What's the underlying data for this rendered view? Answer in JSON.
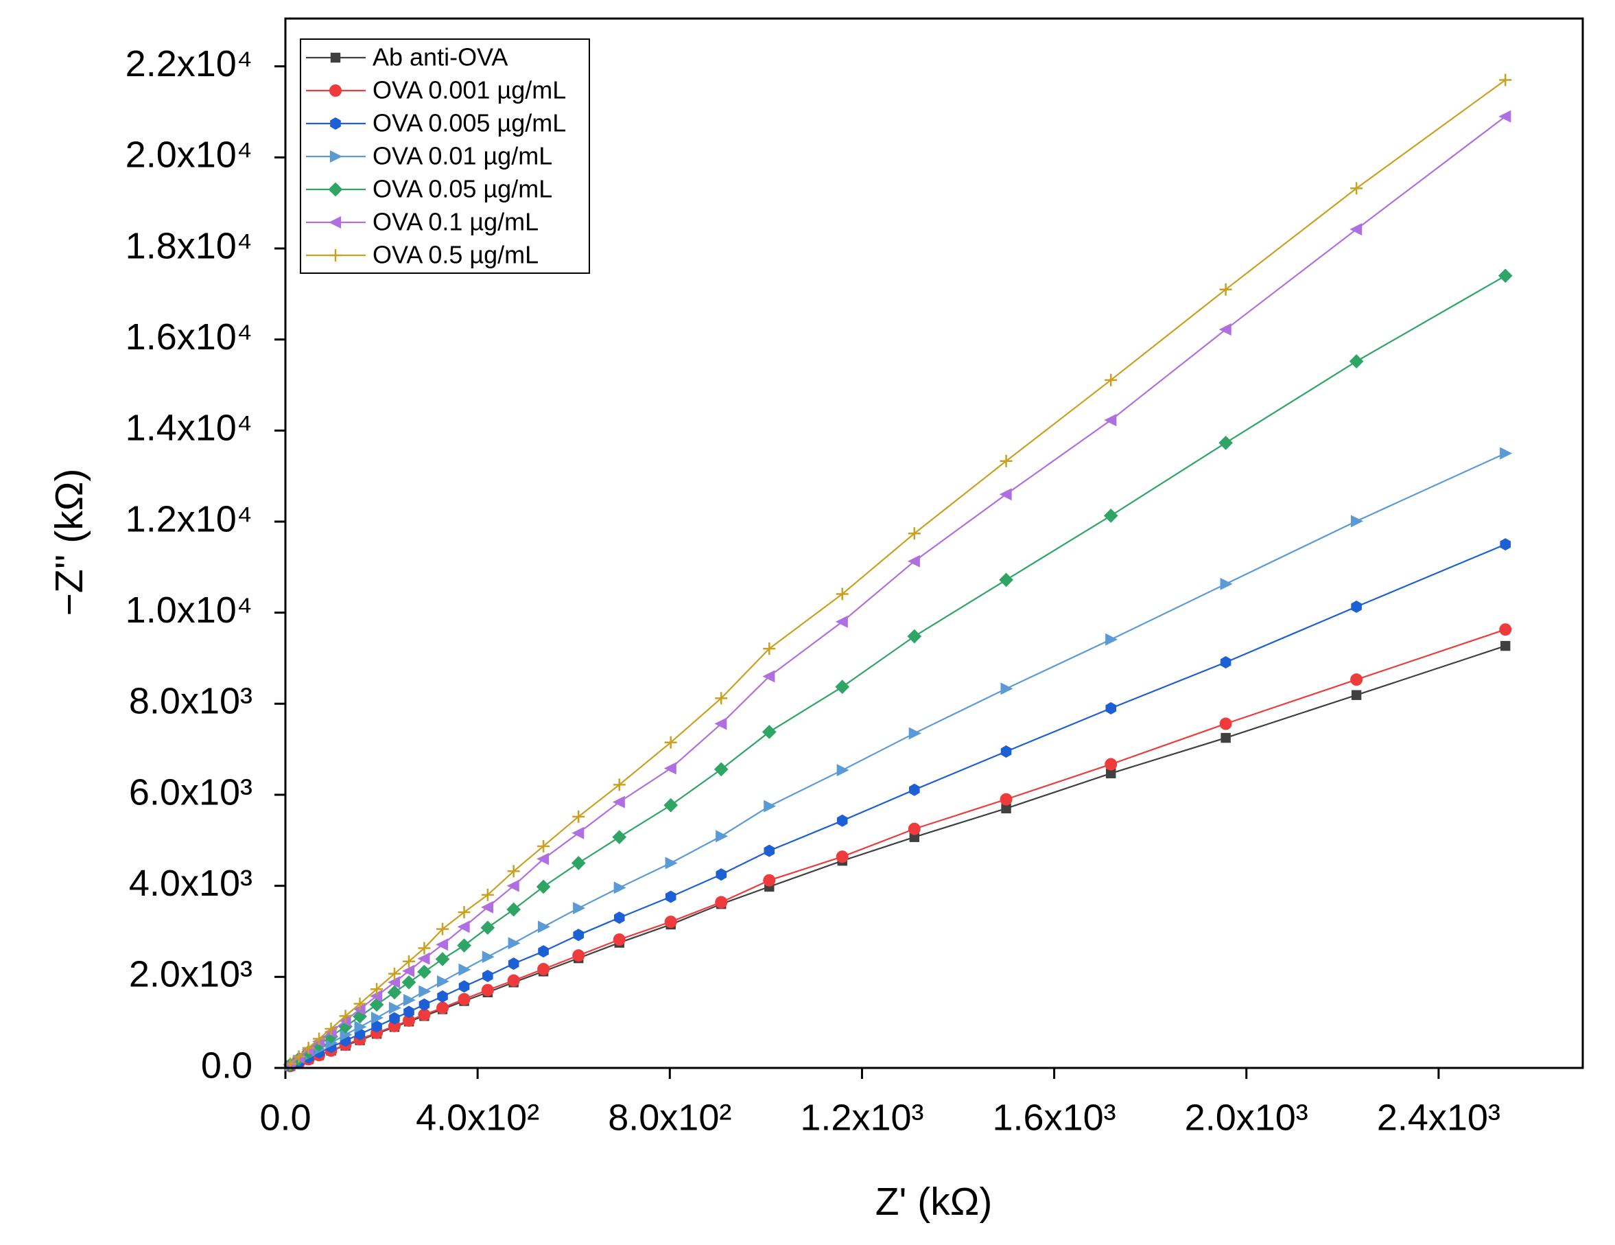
{
  "chart_data": {
    "type": "line",
    "xlabel": "Z' (kΩ)",
    "ylabel": "−Z'' (kΩ)",
    "x": [
      2539,
      2229,
      1957,
      1718,
      1500,
      1309,
      1159,
      1007,
      907,
      802,
      695,
      610,
      537,
      475,
      421,
      372,
      327,
      289,
      257,
      227,
      190,
      155,
      125,
      95,
      70,
      48,
      28,
      10
    ],
    "xlim": [
      0,
      2700
    ],
    "ylim": [
      0,
      23050
    ],
    "xticks": [
      {
        "value": 0,
        "label": "0.0"
      },
      {
        "value": 400,
        "label": "4.0x10²"
      },
      {
        "value": 800,
        "label": "8.0x10²"
      },
      {
        "value": 1200,
        "label": "1.2x10³"
      },
      {
        "value": 1600,
        "label": "1.6x10³"
      },
      {
        "value": 2000,
        "label": "2.0x10³"
      },
      {
        "value": 2400,
        "label": "2.4x10³"
      }
    ],
    "yticks": [
      {
        "value": 0,
        "label": "0.0"
      },
      {
        "value": 2000,
        "label": "2.0x10³"
      },
      {
        "value": 4000,
        "label": "4.0x10³"
      },
      {
        "value": 6000,
        "label": "6.0x10³"
      },
      {
        "value": 8000,
        "label": "8.0x10³"
      },
      {
        "value": 10000,
        "label": "1.0x10⁴"
      },
      {
        "value": 12000,
        "label": "1.2x10⁴"
      },
      {
        "value": 14000,
        "label": "1.4x10⁴"
      },
      {
        "value": 16000,
        "label": "1.6x10⁴"
      },
      {
        "value": 18000,
        "label": "1.8x10⁴"
      },
      {
        "value": 20000,
        "label": "2.0x10⁴"
      },
      {
        "value": 22000,
        "label": "2.2x10⁴"
      }
    ],
    "legend": "upper left",
    "grid": false,
    "series": [
      {
        "name": "Ab anti-OVA",
        "color": "#404040",
        "marker": "square",
        "values": [
          9270,
          8190,
          7250,
          6470,
          5700,
          5070,
          4550,
          3980,
          3600,
          3150,
          2750,
          2410,
          2120,
          1880,
          1660,
          1470,
          1290,
          1140,
          1020,
          900,
          750,
          610,
          490,
          380,
          280,
          190,
          110,
          40
        ]
      },
      {
        "name": "OVA 0.001 µg/mL",
        "color": "#ef3b3b",
        "marker": "circle",
        "values": [
          9630,
          8530,
          7560,
          6670,
          5900,
          5250,
          4640,
          4120,
          3640,
          3210,
          2820,
          2470,
          2170,
          1920,
          1710,
          1510,
          1320,
          1170,
          1040,
          920,
          770,
          630,
          510,
          380,
          280,
          190,
          110,
          40
        ]
      },
      {
        "name": "OVA 0.005 µg/mL",
        "color": "#1d5fd4",
        "marker": "hexagon",
        "values": [
          11500,
          10130,
          8910,
          7900,
          6950,
          6110,
          5430,
          4770,
          4250,
          3760,
          3300,
          2920,
          2560,
          2290,
          2020,
          1790,
          1570,
          1390,
          1230,
          1090,
          910,
          740,
          600,
          460,
          340,
          230,
          130,
          50
        ]
      },
      {
        "name": "OVA  0.01 µg/mL",
        "color": "#5b9bd5",
        "marker": "triangle-right",
        "values": [
          13500,
          12010,
          10630,
          9410,
          8330,
          7350,
          6540,
          5750,
          5090,
          4500,
          3960,
          3510,
          3100,
          2740,
          2440,
          2160,
          1900,
          1680,
          1490,
          1320,
          1100,
          900,
          730,
          550,
          410,
          280,
          160,
          60
        ]
      },
      {
        "name": "OVA 0.05 µg/mL",
        "color": "#2fa565",
        "marker": "diamond",
        "values": [
          17400,
          15520,
          13730,
          12130,
          10720,
          9480,
          8370,
          7380,
          6560,
          5770,
          5070,
          4500,
          3980,
          3480,
          3080,
          2690,
          2390,
          2110,
          1880,
          1660,
          1390,
          1130,
          910,
          690,
          510,
          350,
          200,
          70
        ]
      },
      {
        "name": "OVA 0.1 µg/mL",
        "color": "#b06fe0",
        "marker": "triangle-left",
        "values": [
          20900,
          18420,
          16220,
          14230,
          12600,
          11130,
          9800,
          8600,
          7560,
          6580,
          5840,
          5160,
          4590,
          4000,
          3530,
          3100,
          2710,
          2400,
          2130,
          1880,
          1580,
          1290,
          1040,
          790,
          580,
          400,
          230,
          80
        ]
      },
      {
        "name": "OVA 0.5 µg/mL",
        "color": "#c9a020",
        "marker": "plus",
        "values": [
          21700,
          19320,
          17100,
          15110,
          13330,
          11740,
          10410,
          9210,
          8120,
          7150,
          6220,
          5520,
          4870,
          4320,
          3800,
          3420,
          3050,
          2630,
          2340,
          2070,
          1730,
          1410,
          1140,
          860,
          640,
          440,
          250,
          90
        ]
      }
    ]
  }
}
